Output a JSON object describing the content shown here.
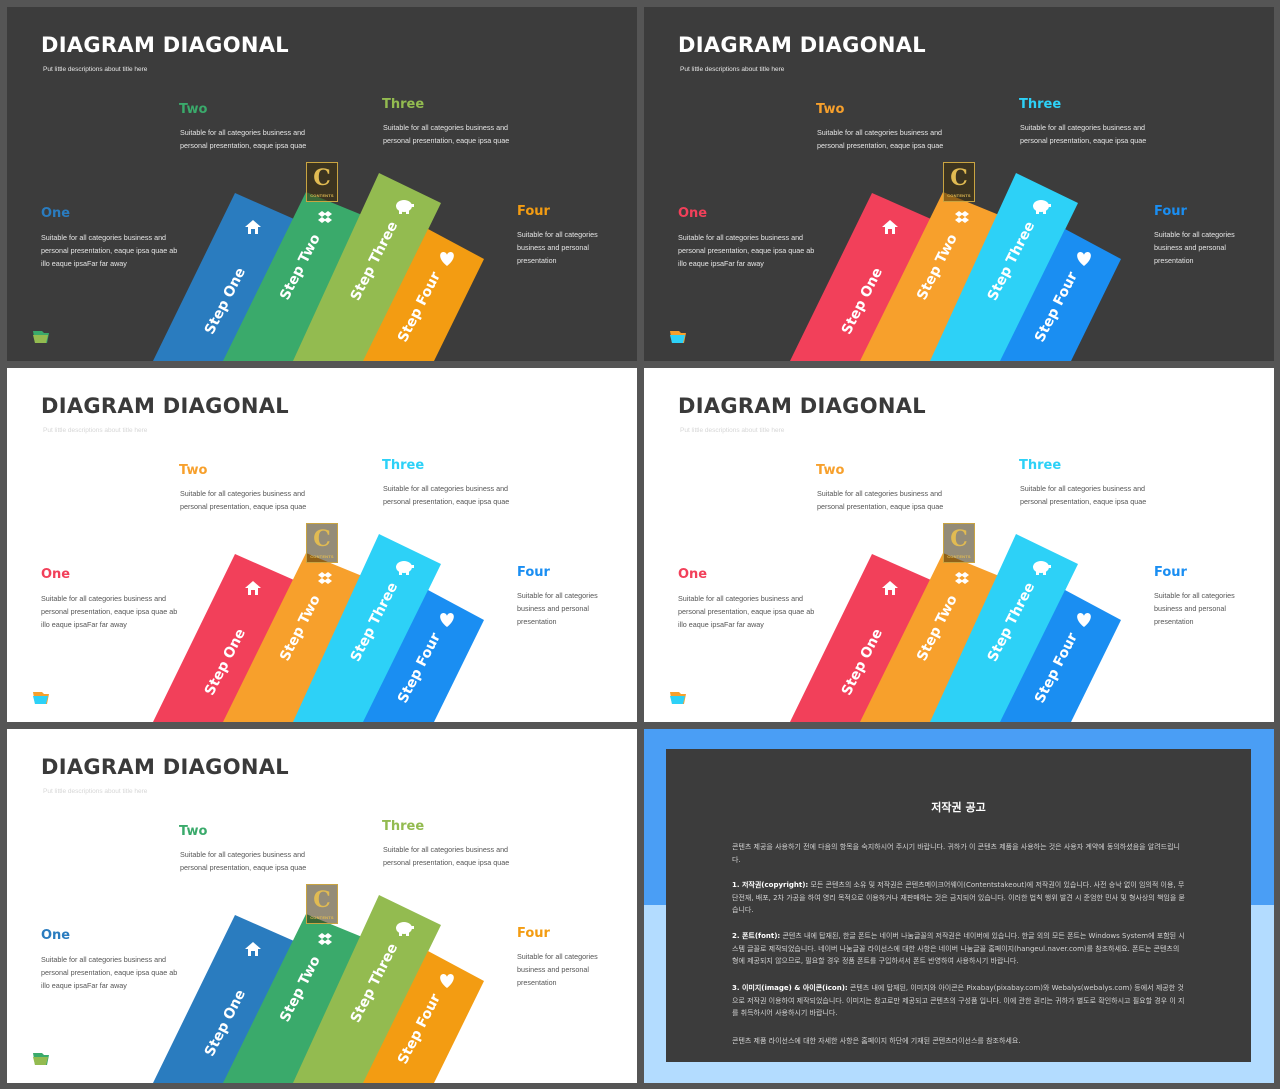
{
  "slides": [
    {
      "theme": "dark",
      "palette": [
        "#2a7cbf",
        "#3aaa6b",
        "#93bb50",
        "#f39c12"
      ],
      "label_colors": [
        "#2a7cbf",
        "#3aaa6b",
        "#93bb50",
        "#f39c12"
      ]
    },
    {
      "theme": "dark",
      "palette": [
        "#f2405a",
        "#f7a02c",
        "#2dd1f7",
        "#1a8ef2"
      ],
      "label_colors": [
        "#f2405a",
        "#f7a02c",
        "#2dd1f7",
        "#1a8ef2"
      ]
    },
    {
      "theme": "light",
      "palette": [
        "#f2405a",
        "#f7a02c",
        "#2dd1f7",
        "#1a8ef2"
      ],
      "label_colors": [
        "#f2405a",
        "#f7a02c",
        "#2dd1f7",
        "#1a8ef2"
      ]
    },
    {
      "theme": "light",
      "palette": [
        "#f2405a",
        "#f7a02c",
        "#2dd1f7",
        "#1a8ef2"
      ],
      "label_colors": [
        "#f2405a",
        "#f7a02c",
        "#2dd1f7",
        "#1a8ef2"
      ]
    },
    {
      "theme": "light",
      "palette": [
        "#2a7cbf",
        "#3aaa6b",
        "#93bb50",
        "#f39c12"
      ],
      "label_colors": [
        "#2a7cbf",
        "#3aaa6b",
        "#93bb50",
        "#f39c12"
      ]
    }
  ],
  "content": {
    "title": "DIAGRAM DIAGONAL",
    "subtitle": "Put little descriptions about title here",
    "one_label": "One",
    "one_desc": "Suitable for all categories business and personal presentation, eaque ipsa quae ab illo eaque ipsaFar far away",
    "two_label": "Two",
    "two_desc": "Suitable for all categories business and personal presentation, eaque ipsa quae",
    "three_label": "Three",
    "three_desc": "Suitable for all categories business and personal presentation, eaque ipsa quae",
    "four_label": "Four",
    "four_desc": "Suitable for all categories business and personal presentation",
    "steps": [
      "Step One",
      "Step Two",
      "Step Three",
      "Step Four"
    ],
    "step_icons": [
      "home-icon",
      "dropbox-icon",
      "piggy-bank-icon",
      "heart-icon"
    ],
    "logo_letter": "C",
    "logo_text": "CONTENTS"
  },
  "copyright": {
    "title": "저작권 공고",
    "p1": "콘텐츠 제공을 사용하기 전에 다음의 항목을 숙지하시어 주시기 바랍니다. 귀하가 이 콘텐츠 제품을 사용하는 것은 사용자 계약에 동의하셨음을 알려드립니다.",
    "p2_head": "1. 저작권(copyright):",
    "p2": " 모든 콘텐츠의 소유 및 저작권은 콘텐츠메이크어웨이(Contentstakeout)에 저작권이 있습니다. 사전 승낙 없이 임의적 이용, 무단전재, 배포, 2차 가공을 하여 영리 목적으로 이용하거나 재판매하는 것은 금지되어 있습니다. 이러한 법칙 행위 발견 시 준엄한 민사 및 형사상의 책임을 묻습니다.",
    "p3_head": "2. 폰트(font):",
    "p3": " 콘텐츠 내에 탑재된, 한글 폰트는 네이버 나눔글꼴의 저작권은 네이버에 있습니다. 한글 외의 모든 폰트는 Windows System에 포함된 시스템 글꼴로 제작되었습니다. 네이버 나눔글꼴 라이선스에 대한 사항은 네이버 나눔글꼴 홈페이지(hangeul.naver.com)를 참조하세요. 폰트는 콘텐츠의 형에 제공되지 않으므로, 필요할 경우 정품 폰트를 구입하셔서 폰트 반영하여 사용하시기 바랍니다.",
    "p4_head": "3. 이미지(image) & 아이콘(icon):",
    "p4": " 콘텐츠 내에 탑재된, 이미지와 아이콘은 Pixabay(pixabay.com)와 Webalys(webalys.com) 등에서 제공한 것으로 저작권 이용하여 제작되었습니다. 이미지는 참고로만 제공되고 콘텐츠의 구성품 입니다. 이에 관한 권리는 귀하가 별도로 확인하시고 필요할 경우 이 지를 취득하시어 사용하시기 바랍니다.",
    "p5": "콘텐츠 제품 라이선스에 대한 자세한 사항은 홈페이지 하단에 기재된 콘텐츠라이선스를 참조하세요."
  }
}
